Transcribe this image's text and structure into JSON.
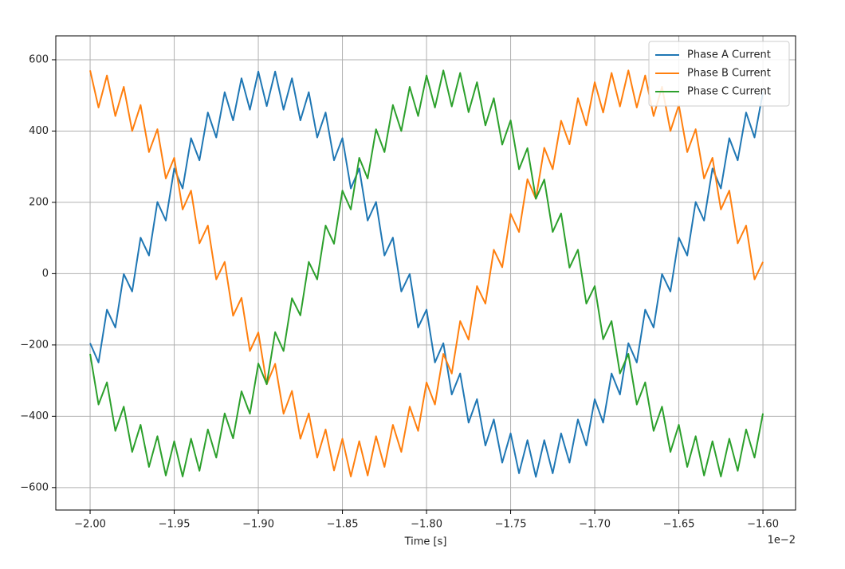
{
  "chart_data": {
    "type": "line",
    "x_label": "Time [s]",
    "x_offset_label": "1e−2",
    "x": [
      -2,
      -1.995,
      -1.99,
      -1.985,
      -1.98,
      -1.975,
      -1.97,
      -1.965,
      -1.96,
      -1.955,
      -1.95,
      -1.945,
      -1.94,
      -1.935,
      -1.93,
      -1.925,
      -1.92,
      -1.915,
      -1.91,
      -1.905,
      -1.9,
      -1.895,
      -1.89,
      -1.885,
      -1.88,
      -1.875,
      -1.87,
      -1.865,
      -1.86,
      -1.855,
      -1.85,
      -1.845,
      -1.84,
      -1.835,
      -1.83,
      -1.825,
      -1.82,
      -1.815,
      -1.81,
      -1.805,
      -1.8,
      -1.795,
      -1.79,
      -1.785,
      -1.78,
      -1.775,
      -1.77,
      -1.765,
      -1.76,
      -1.755,
      -1.75,
      -1.745,
      -1.74,
      -1.735,
      -1.73,
      -1.725,
      -1.72,
      -1.715,
      -1.71,
      -1.705,
      -1.7,
      -1.695,
      -1.69,
      -1.685,
      -1.68,
      -1.675,
      -1.67,
      -1.665,
      -1.66,
      -1.655,
      -1.65,
      -1.645,
      -1.64,
      -1.635,
      -1.63,
      -1.625,
      -1.62,
      -1.615,
      -1.61,
      -1.605,
      -1.6
    ],
    "series": [
      {
        "name": "Phase A Current",
        "color": "#1f77b4",
        "values": [
          -195,
          -249,
          -101,
          -151,
          -1,
          -50,
          101,
          51,
          201,
          149,
          295,
          239,
          380,
          318,
          452,
          382,
          509,
          430,
          548,
          460,
          567,
          470,
          567,
          460,
          548,
          430,
          509,
          382,
          452,
          318,
          380,
          239,
          295,
          149,
          201,
          51,
          101,
          -50,
          -1,
          -151,
          -101,
          -249,
          -195,
          -339,
          -280,
          -418,
          -352,
          -482,
          -409,
          -530,
          -448,
          -560,
          -467,
          -570,
          -467,
          -560,
          -448,
          -530,
          -409,
          -482,
          -352,
          -418,
          -280,
          -339,
          -195,
          -249,
          -101,
          -151,
          -1,
          -50,
          101,
          51,
          201,
          149,
          295,
          239,
          380,
          318,
          452,
          382,
          509
        ]
      },
      {
        "name": "Phase B Current",
        "color": "#ff7f0e",
        "values": [
          570,
          466,
          556,
          442,
          524,
          400,
          473,
          341,
          405,
          267,
          325,
          180,
          233,
          85,
          135,
          -16,
          33,
          -118,
          -68,
          -217,
          -165,
          -310,
          -253,
          -393,
          -329,
          -463,
          -392,
          -516,
          -437,
          -552,
          -463,
          -569,
          -470,
          -566,
          -456,
          -542,
          -424,
          -500,
          -373,
          -441,
          -305,
          -367,
          -225,
          -280,
          -133,
          -185,
          -35,
          -84,
          67,
          18,
          168,
          117,
          265,
          210,
          353,
          293,
          429,
          363,
          492,
          416,
          537,
          452,
          563,
          469,
          570,
          466,
          556,
          442,
          524,
          400,
          473,
          341,
          405,
          267,
          325,
          180,
          233,
          85,
          135,
          -16,
          33
        ]
      },
      {
        "name": "Phase C Current",
        "color": "#2ca02c",
        "values": [
          -225,
          -367,
          -305,
          -441,
          -373,
          -500,
          -424,
          -542,
          -456,
          -566,
          -470,
          -569,
          -463,
          -553,
          -437,
          -516,
          -392,
          -462,
          -330,
          -393,
          -252,
          -310,
          -164,
          -217,
          -69,
          -117,
          33,
          -16,
          135,
          84,
          233,
          180,
          325,
          267,
          405,
          341,
          473,
          400,
          524,
          442,
          556,
          466,
          570,
          469,
          563,
          453,
          537,
          416,
          492,
          362,
          430,
          293,
          352,
          210,
          264,
          117,
          169,
          17,
          67,
          -84,
          -35,
          -184,
          -133,
          -280,
          -225,
          -367,
          -305,
          -441,
          -373,
          -500,
          -424,
          -542,
          -456,
          -566,
          -470,
          -569,
          -463,
          -553,
          -437,
          -516,
          -392
        ]
      }
    ],
    "xlim": [
      -2.0204,
      -1.5806
    ],
    "xticks": [
      {
        "value": -2,
        "label": "−2.00"
      },
      {
        "value": -1.95,
        "label": "−1.95"
      },
      {
        "value": -1.9,
        "label": "−1.90"
      },
      {
        "value": -1.85,
        "label": "−1.85"
      },
      {
        "value": -1.8,
        "label": "−1.80"
      },
      {
        "value": -1.75,
        "label": "−1.75"
      },
      {
        "value": -1.7,
        "label": "−1.70"
      },
      {
        "value": -1.65,
        "label": "−1.65"
      },
      {
        "value": -1.6,
        "label": "−1.60"
      }
    ],
    "ylim": [
      -663,
      667
    ],
    "yticks": [
      {
        "value": -600,
        "label": "−600"
      },
      {
        "value": -400,
        "label": "−400"
      },
      {
        "value": -200,
        "label": "−200"
      },
      0,
      200,
      400,
      600
    ],
    "grid": true,
    "legend": "upper right"
  }
}
